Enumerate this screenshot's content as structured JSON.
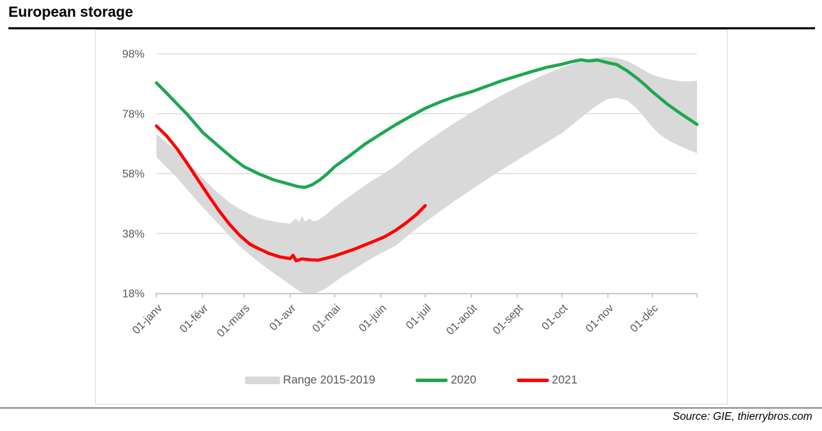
{
  "page": {
    "title": "European storage",
    "source": "Source: GIE, thierrybros.com"
  },
  "chart_data": {
    "type": "line",
    "title": "European storage",
    "xlabel": "",
    "ylabel": "",
    "grid": "horizontal",
    "legend_position": "bottom-center",
    "ylim": [
      18,
      98
    ],
    "y_ticks": [
      18,
      38,
      58,
      78,
      98
    ],
    "y_tick_suffix": "%",
    "x_tick_labels": [
      "01-janv",
      "01-févr",
      "01-mars",
      "01-avr",
      "01-mai",
      "01-juin",
      "01-juil",
      "01-août",
      "01-sept",
      "01-oct",
      "01-nov",
      "01-déc"
    ],
    "x_tick_days": [
      1,
      32,
      60,
      91,
      121,
      152,
      182,
      213,
      244,
      274,
      305,
      335
    ],
    "x_domain_days": [
      1,
      365
    ],
    "axis_color": "#bfbfbf",
    "gridline_color": "#d9d9d9",
    "tick_label_color": "#595959",
    "legend": [
      {
        "label": "Range 2015-2019",
        "color": "#d9d9d9",
        "marker": "band"
      },
      {
        "label": "2020",
        "color": "#1ea750",
        "marker": "line"
      },
      {
        "label": "2021",
        "color": "#fe0000",
        "marker": "line"
      }
    ],
    "series": [
      {
        "name": "Range 2015-2019",
        "type": "band",
        "color": "#d9d9d9",
        "points": [
          [
            1,
            63.5,
            71.3
          ],
          [
            8,
            60,
            68.3
          ],
          [
            15,
            56.5,
            65.2
          ],
          [
            22,
            52.5,
            61.6
          ],
          [
            29,
            48.5,
            58.2
          ],
          [
            36,
            44.8,
            54.6
          ],
          [
            43,
            41,
            51.3
          ],
          [
            50,
            37.3,
            48.4
          ],
          [
            57,
            33.8,
            46.2
          ],
          [
            64,
            30.8,
            44.4
          ],
          [
            70,
            28.4,
            43.2
          ],
          [
            77,
            25.8,
            42.3
          ],
          [
            84,
            23.4,
            41.7
          ],
          [
            91,
            20.9,
            41.3
          ],
          [
            95,
            19.5,
            43.1
          ],
          [
            97,
            18.8,
            41.8
          ],
          [
            99,
            18.3,
            43.8
          ],
          [
            101,
            18.1,
            42
          ],
          [
            104,
            18,
            43
          ],
          [
            107,
            18,
            42
          ],
          [
            110,
            18.4,
            42.5
          ],
          [
            115,
            19.6,
            44.2
          ],
          [
            121,
            21.8,
            46.8
          ],
          [
            128,
            24.2,
            49.3
          ],
          [
            135,
            26.3,
            51.8
          ],
          [
            141,
            28.2,
            53.9
          ],
          [
            148,
            30.3,
            56.2
          ],
          [
            155,
            32.1,
            58.3
          ],
          [
            162,
            33.9,
            60.6
          ],
          [
            172,
            38,
            64.7
          ],
          [
            182,
            41.8,
            68.3
          ],
          [
            192,
            45.4,
            71.7
          ],
          [
            202,
            48.9,
            75
          ],
          [
            213,
            52.6,
            78.4
          ],
          [
            223,
            55.9,
            81.3
          ],
          [
            233,
            59.1,
            84
          ],
          [
            244,
            62.5,
            86.8
          ],
          [
            254,
            65.5,
            89.2
          ],
          [
            264,
            68.5,
            91.4
          ],
          [
            274,
            71.5,
            93.4
          ],
          [
            284,
            75.5,
            95.2
          ],
          [
            294,
            79.5,
            96.4
          ],
          [
            300,
            81.5,
            96.8
          ],
          [
            305,
            83,
            96.9
          ],
          [
            311,
            83.3,
            96.6
          ],
          [
            318,
            82.4,
            95.6
          ],
          [
            325,
            79.5,
            93.8
          ],
          [
            330,
            76.5,
            92.3
          ],
          [
            335,
            73.5,
            91
          ],
          [
            340,
            71,
            90.2
          ],
          [
            345,
            69.3,
            89.6
          ],
          [
            350,
            68,
            89.1
          ],
          [
            355,
            66.9,
            88.8
          ],
          [
            360,
            65.8,
            88.8
          ],
          [
            365,
            64.8,
            89
          ]
        ]
      },
      {
        "name": "2020",
        "type": "line",
        "color": "#1ea750",
        "width": 4.5,
        "points": [
          [
            1,
            88.3
          ],
          [
            8,
            84.8
          ],
          [
            15,
            81.2
          ],
          [
            22,
            77.6
          ],
          [
            29,
            73.6
          ],
          [
            32,
            71.8
          ],
          [
            39,
            68.8
          ],
          [
            46,
            65.8
          ],
          [
            53,
            62.9
          ],
          [
            60,
            60.3
          ],
          [
            70,
            57.9
          ],
          [
            80,
            55.9
          ],
          [
            91,
            54.4
          ],
          [
            96,
            53.7
          ],
          [
            101,
            53.4
          ],
          [
            106,
            54.3
          ],
          [
            111,
            55.9
          ],
          [
            116,
            57.9
          ],
          [
            121,
            60.3
          ],
          [
            131,
            63.9
          ],
          [
            141,
            67.7
          ],
          [
            152,
            71.2
          ],
          [
            162,
            74.3
          ],
          [
            172,
            77.1
          ],
          [
            182,
            79.8
          ],
          [
            192,
            81.9
          ],
          [
            202,
            83.7
          ],
          [
            213,
            85.3
          ],
          [
            223,
            87.1
          ],
          [
            233,
            88.9
          ],
          [
            244,
            90.6
          ],
          [
            254,
            92.1
          ],
          [
            264,
            93.5
          ],
          [
            274,
            94.5
          ],
          [
            280,
            95.3
          ],
          [
            287,
            96
          ],
          [
            292,
            95.6
          ],
          [
            298,
            95.9
          ],
          [
            305,
            95
          ],
          [
            311,
            94.4
          ],
          [
            318,
            92.3
          ],
          [
            325,
            89.7
          ],
          [
            330,
            87.6
          ],
          [
            335,
            85.3
          ],
          [
            345,
            81.2
          ],
          [
            355,
            77.7
          ],
          [
            365,
            74.4
          ]
        ]
      },
      {
        "name": "2021",
        "type": "line",
        "color": "#fe0000",
        "width": 4.5,
        "points": [
          [
            1,
            73.9
          ],
          [
            8,
            70.5
          ],
          [
            15,
            66.2
          ],
          [
            22,
            61.2
          ],
          [
            29,
            55.9
          ],
          [
            36,
            50.7
          ],
          [
            43,
            45.7
          ],
          [
            50,
            41.2
          ],
          [
            57,
            37.4
          ],
          [
            64,
            34.4
          ],
          [
            70,
            32.9
          ],
          [
            77,
            31.3
          ],
          [
            84,
            30.2
          ],
          [
            91,
            29.6
          ],
          [
            93,
            30.7
          ],
          [
            95,
            28.9
          ],
          [
            99,
            29.5
          ],
          [
            105,
            29.2
          ],
          [
            110,
            29.1
          ],
          [
            115,
            29.7
          ],
          [
            121,
            30.5
          ],
          [
            128,
            31.7
          ],
          [
            135,
            32.9
          ],
          [
            141,
            34.1
          ],
          [
            148,
            35.5
          ],
          [
            155,
            37
          ],
          [
            162,
            39
          ],
          [
            169,
            41.5
          ],
          [
            176,
            44.3
          ],
          [
            182,
            47.3
          ]
        ]
      }
    ]
  }
}
